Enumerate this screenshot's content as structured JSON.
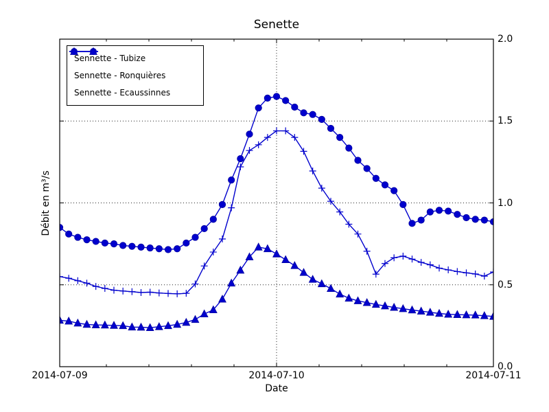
{
  "chart_data": {
    "type": "line",
    "title": "Senette",
    "xlabel": "Date",
    "ylabel": "Débit en m³/s",
    "x_tick_labels": [
      "2014-07-09",
      "2014-07-10",
      "2014-07-11"
    ],
    "y_tick_labels": [
      "2.0",
      "1.5",
      "1.0",
      "0.5",
      "0.0"
    ],
    "ylim": [
      0.0,
      2.0
    ],
    "x_start": "2014-07-09 00:00",
    "x_end": "2014-07-11 00:00",
    "x_interval_hours": 1,
    "grid": "dotted",
    "legend_position": "upper-left",
    "line_color": "#0000cd",
    "series": [
      {
        "name": "Sennette - Tubize",
        "marker": "circle",
        "color": "#0000cd",
        "values": [
          0.85,
          0.81,
          0.79,
          0.775,
          0.765,
          0.755,
          0.75,
          0.74,
          0.735,
          0.73,
          0.725,
          0.72,
          0.715,
          0.72,
          0.755,
          0.79,
          0.843,
          0.9,
          0.99,
          1.14,
          1.27,
          1.42,
          1.58,
          1.64,
          1.65,
          1.625,
          1.585,
          1.55,
          1.54,
          1.51,
          1.455,
          1.4,
          1.335,
          1.26,
          1.21,
          1.15,
          1.11,
          1.075,
          0.99,
          0.875,
          0.895,
          0.945,
          0.955,
          0.95,
          0.93,
          0.91,
          0.9,
          0.895,
          0.885
        ]
      },
      {
        "name": "Sennette - Ronquières",
        "marker": "plus",
        "color": "#0000cd",
        "values": [
          0.55,
          0.54,
          0.525,
          0.51,
          0.49,
          0.478,
          0.467,
          0.462,
          0.458,
          0.453,
          0.455,
          0.45,
          0.447,
          0.445,
          0.448,
          0.505,
          0.615,
          0.7,
          0.78,
          0.97,
          1.22,
          1.32,
          1.355,
          1.4,
          1.44,
          1.44,
          1.4,
          1.315,
          1.195,
          1.09,
          1.01,
          0.945,
          0.87,
          0.81,
          0.705,
          0.565,
          0.63,
          0.665,
          0.675,
          0.657,
          0.637,
          0.622,
          0.602,
          0.591,
          0.581,
          0.573,
          0.566,
          0.553,
          0.578
        ]
      },
      {
        "name": "Sennette - Ecaussinnes",
        "marker": "triangle_up",
        "color": "#0000cd",
        "values": [
          0.283,
          0.278,
          0.266,
          0.258,
          0.255,
          0.254,
          0.252,
          0.25,
          0.242,
          0.241,
          0.238,
          0.244,
          0.25,
          0.258,
          0.27,
          0.288,
          0.322,
          0.347,
          0.412,
          0.51,
          0.589,
          0.67,
          0.73,
          0.72,
          0.688,
          0.653,
          0.617,
          0.575,
          0.533,
          0.506,
          0.477,
          0.443,
          0.418,
          0.402,
          0.391,
          0.38,
          0.371,
          0.362,
          0.354,
          0.346,
          0.339,
          0.332,
          0.325,
          0.32,
          0.318,
          0.316,
          0.315,
          0.311,
          0.307
        ]
      }
    ]
  }
}
